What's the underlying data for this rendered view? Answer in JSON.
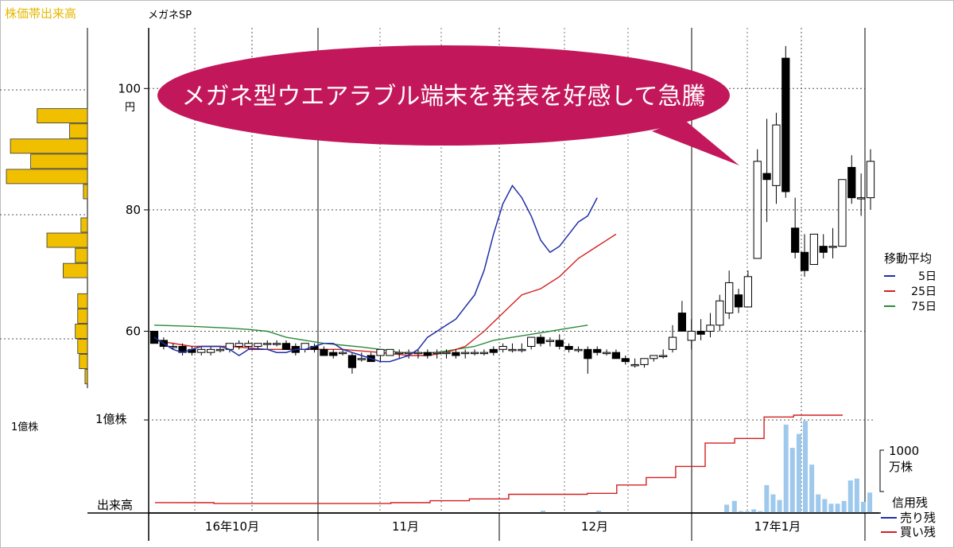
{
  "header": {
    "panel_title": "株価帯出来高",
    "stock_name": "メガネSP"
  },
  "colors": {
    "volume_profile": "#f0c000",
    "ma5": "#1f2fa8",
    "ma25": "#d42020",
    "ma75": "#2a8a3a",
    "volume": "#9ec9ec",
    "sell_balance": "#1f2fa8",
    "buy_balance": "#d42020",
    "callout": "#c2185b",
    "callout_text": "#ffffff"
  },
  "callout": {
    "text": "メガネ型ウエアラブル端末を発表を好感して急騰"
  },
  "left_panel": {
    "volume_label": "1億株"
  },
  "chart_data": {
    "type": "candlestick",
    "title": "メガネSP",
    "ylim": [
      48,
      110
    ],
    "y_ticks": [
      {
        "value": 60,
        "label": "60"
      },
      {
        "value": 80,
        "label": "80"
      },
      {
        "value": 100,
        "label": "100"
      }
    ],
    "y_unit": "円",
    "x_labels": [
      "16年10月",
      "11月",
      "12月",
      "17年1月"
    ],
    "grid": true,
    "candles": [
      {
        "o": 60,
        "h": 60,
        "l": 58,
        "c": 58
      },
      {
        "o": 58.5,
        "h": 59,
        "l": 57,
        "c": 57.5
      },
      {
        "o": 57.5,
        "h": 58,
        "l": 57,
        "c": 57.5
      },
      {
        "o": 57.5,
        "h": 58,
        "l": 56,
        "c": 56.5
      },
      {
        "o": 57,
        "h": 57.5,
        "l": 56,
        "c": 56.5
      },
      {
        "o": 56.5,
        "h": 57.5,
        "l": 56,
        "c": 57
      },
      {
        "o": 56.5,
        "h": 57.5,
        "l": 56,
        "c": 57
      },
      {
        "o": 57,
        "h": 57.5,
        "l": 56.5,
        "c": 57
      },
      {
        "o": 57,
        "h": 58,
        "l": 56.5,
        "c": 58
      },
      {
        "o": 57.5,
        "h": 58.5,
        "l": 57,
        "c": 58
      },
      {
        "o": 57.5,
        "h": 58.5,
        "l": 57,
        "c": 58
      },
      {
        "o": 57.5,
        "h": 58,
        "l": 57,
        "c": 58
      },
      {
        "o": 58,
        "h": 58.5,
        "l": 57,
        "c": 58
      },
      {
        "o": 58,
        "h": 58.5,
        "l": 57.5,
        "c": 58
      },
      {
        "o": 58,
        "h": 58.5,
        "l": 57,
        "c": 57
      },
      {
        "o": 57.5,
        "h": 58,
        "l": 56,
        "c": 56.5
      },
      {
        "o": 57,
        "h": 58,
        "l": 56.5,
        "c": 58
      },
      {
        "o": 57.5,
        "h": 58,
        "l": 56.5,
        "c": 57
      },
      {
        "o": 57,
        "h": 57.5,
        "l": 56,
        "c": 56
      },
      {
        "o": 56.5,
        "h": 57,
        "l": 55.5,
        "c": 56
      },
      {
        "o": 56.5,
        "h": 57,
        "l": 56,
        "c": 56.5
      },
      {
        "o": 56,
        "h": 56.5,
        "l": 53,
        "c": 54
      },
      {
        "o": 55.5,
        "h": 56.5,
        "l": 55,
        "c": 55.5
      },
      {
        "o": 56,
        "h": 56.5,
        "l": 55,
        "c": 55
      },
      {
        "o": 56,
        "h": 57,
        "l": 55,
        "c": 57
      },
      {
        "o": 56,
        "h": 57,
        "l": 56,
        "c": 57
      },
      {
        "o": 56.5,
        "h": 57,
        "l": 55.5,
        "c": 56.5
      },
      {
        "o": 56.5,
        "h": 57,
        "l": 55.5,
        "c": 56.5
      },
      {
        "o": 56.5,
        "h": 57,
        "l": 55.5,
        "c": 56.5
      },
      {
        "o": 56.5,
        "h": 57,
        "l": 55.5,
        "c": 56
      },
      {
        "o": 56.5,
        "h": 57,
        "l": 55.5,
        "c": 56.5
      },
      {
        "o": 56.5,
        "h": 57,
        "l": 55.5,
        "c": 56.5
      },
      {
        "o": 56.5,
        "h": 57,
        "l": 55.5,
        "c": 56
      },
      {
        "o": 56.5,
        "h": 57,
        "l": 55.5,
        "c": 56.5
      },
      {
        "o": 56.5,
        "h": 57,
        "l": 56,
        "c": 56.5
      },
      {
        "o": 56.5,
        "h": 57,
        "l": 56,
        "c": 56.5
      },
      {
        "o": 57,
        "h": 57.5,
        "l": 56,
        "c": 56.5
      },
      {
        "o": 57,
        "h": 58,
        "l": 56.5,
        "c": 57.5
      },
      {
        "o": 57,
        "h": 58,
        "l": 56.5,
        "c": 57
      },
      {
        "o": 57,
        "h": 58,
        "l": 56.5,
        "c": 57
      },
      {
        "o": 57.5,
        "h": 59,
        "l": 57,
        "c": 59
      },
      {
        "o": 59,
        "h": 59.5,
        "l": 57.5,
        "c": 58
      },
      {
        "o": 58.5,
        "h": 59,
        "l": 57.5,
        "c": 58.5
      },
      {
        "o": 58.5,
        "h": 59.5,
        "l": 57,
        "c": 57.5
      },
      {
        "o": 57.5,
        "h": 58,
        "l": 56.5,
        "c": 57
      },
      {
        "o": 57,
        "h": 57.5,
        "l": 56.5,
        "c": 57
      },
      {
        "o": 57,
        "h": 57.5,
        "l": 53,
        "c": 55.5
      },
      {
        "o": 57,
        "h": 57.5,
        "l": 56,
        "c": 56.5
      },
      {
        "o": 56.5,
        "h": 57,
        "l": 56,
        "c": 56.5
      },
      {
        "o": 56.5,
        "h": 57,
        "l": 56,
        "c": 55.5
      },
      {
        "o": 55.5,
        "h": 56,
        "l": 54.5,
        "c": 55
      },
      {
        "o": 54.5,
        "h": 55.5,
        "l": 54,
        "c": 54.5
      },
      {
        "o": 54.5,
        "h": 55.5,
        "l": 54,
        "c": 55.5
      },
      {
        "o": 55.5,
        "h": 56,
        "l": 55,
        "c": 56
      },
      {
        "o": 56,
        "h": 57,
        "l": 55.5,
        "c": 56
      },
      {
        "o": 57,
        "h": 61,
        "l": 56.5,
        "c": 59
      },
      {
        "o": 63,
        "h": 65,
        "l": 60,
        "c": 60
      },
      {
        "o": 58.5,
        "h": 62,
        "l": 57,
        "c": 60
      },
      {
        "o": 60,
        "h": 62,
        "l": 58.5,
        "c": 59.5
      },
      {
        "o": 60,
        "h": 63,
        "l": 59,
        "c": 61
      },
      {
        "o": 61,
        "h": 66,
        "l": 60,
        "c": 65
      },
      {
        "o": 63,
        "h": 70,
        "l": 62,
        "c": 68
      },
      {
        "o": 66,
        "h": 67,
        "l": 63,
        "c": 64
      },
      {
        "o": 64,
        "h": 70,
        "l": 64,
        "c": 69
      },
      {
        "o": 72,
        "h": 90,
        "l": 72,
        "c": 88
      },
      {
        "o": 86,
        "h": 95,
        "l": 78,
        "c": 85
      },
      {
        "o": 84,
        "h": 96,
        "l": 81,
        "c": 94
      },
      {
        "o": 105,
        "h": 107,
        "l": 82,
        "c": 83
      },
      {
        "o": 77,
        "h": 82,
        "l": 72,
        "c": 73
      },
      {
        "o": 73,
        "h": 76,
        "l": 69,
        "c": 70
      },
      {
        "o": 71,
        "h": 76,
        "l": 71,
        "c": 76
      },
      {
        "o": 74,
        "h": 76,
        "l": 72,
        "c": 73
      },
      {
        "o": 74,
        "h": 77,
        "l": 72,
        "c": 74
      },
      {
        "o": 74,
        "h": 85,
        "l": 74,
        "c": 85
      },
      {
        "o": 87,
        "h": 89,
        "l": 81,
        "c": 82
      },
      {
        "o": 82,
        "h": 86,
        "l": 79,
        "c": 82
      },
      {
        "o": 82,
        "h": 90,
        "l": 80,
        "c": 88
      }
    ],
    "ma5": [
      [
        0,
        59
      ],
      [
        10,
        58
      ],
      [
        20,
        57
      ],
      [
        30,
        56.5
      ],
      [
        40,
        57
      ],
      [
        50,
        57.5
      ],
      [
        60,
        57.5
      ],
      [
        70,
        57.5
      ],
      [
        80,
        57
      ],
      [
        90,
        56
      ],
      [
        95,
        56.5
      ],
      [
        100,
        57
      ],
      [
        110,
        57
      ],
      [
        120,
        57
      ],
      [
        130,
        56.5
      ],
      [
        140,
        56.5
      ],
      [
        150,
        57
      ],
      [
        160,
        57
      ],
      [
        170,
        57.5
      ],
      [
        180,
        58
      ],
      [
        190,
        58
      ],
      [
        200,
        57
      ],
      [
        210,
        56.5
      ],
      [
        220,
        56
      ],
      [
        230,
        55.5
      ],
      [
        240,
        55
      ],
      [
        250,
        55
      ],
      [
        260,
        55.5
      ],
      [
        270,
        56
      ],
      [
        280,
        57
      ],
      [
        290,
        59
      ],
      [
        300,
        60
      ],
      [
        310,
        61
      ],
      [
        320,
        62
      ],
      [
        330,
        64
      ],
      [
        340,
        66
      ],
      [
        350,
        70
      ],
      [
        360,
        76
      ],
      [
        370,
        81
      ],
      [
        380,
        84
      ],
      [
        390,
        82
      ],
      [
        400,
        79
      ],
      [
        410,
        75
      ],
      [
        420,
        73
      ],
      [
        430,
        74
      ],
      [
        440,
        76
      ],
      [
        450,
        78
      ],
      [
        460,
        79
      ],
      [
        470,
        82
      ]
    ],
    "ma25": [
      [
        0,
        58.5
      ],
      [
        40,
        57.5
      ],
      [
        80,
        57.5
      ],
      [
        120,
        57
      ],
      [
        160,
        57
      ],
      [
        200,
        57
      ],
      [
        240,
        56.5
      ],
      [
        270,
        56
      ],
      [
        290,
        56
      ],
      [
        310,
        56.5
      ],
      [
        330,
        57.5
      ],
      [
        350,
        60
      ],
      [
        370,
        63
      ],
      [
        390,
        66
      ],
      [
        410,
        67
      ],
      [
        430,
        69
      ],
      [
        450,
        72
      ],
      [
        470,
        74
      ],
      [
        490,
        76
      ]
    ],
    "ma75": [
      [
        0,
        61
      ],
      [
        40,
        60.8
      ],
      [
        80,
        60.5
      ],
      [
        100,
        60.3
      ],
      [
        120,
        60
      ],
      [
        140,
        59
      ],
      [
        160,
        58.5
      ],
      [
        180,
        58
      ],
      [
        200,
        57.7
      ],
      [
        220,
        57.4
      ],
      [
        240,
        57
      ],
      [
        260,
        56.5
      ],
      [
        280,
        56.4
      ],
      [
        300,
        56.5
      ],
      [
        320,
        57
      ],
      [
        340,
        57.5
      ],
      [
        360,
        58.5
      ],
      [
        380,
        59
      ],
      [
        400,
        59.5
      ],
      [
        420,
        60
      ],
      [
        440,
        60.5
      ],
      [
        460,
        61
      ]
    ],
    "moving_average_legend": {
      "title": "移動平均",
      "items": [
        {
          "name": "5日",
          "color": "#1f2fa8"
        },
        {
          "name": "25日",
          "color": "#d42020"
        },
        {
          "name": "75日",
          "color": "#2a8a3a"
        }
      ]
    },
    "volume_panel": {
      "label_top": "1億株",
      "label_bottom": "出来高",
      "unit_label_value": "1000",
      "unit_label_unit": "万株",
      "volume_max": 100,
      "volumes": [
        {
          "t": 0.888,
          "v": 9
        },
        {
          "t": 0.9,
          "v": 13
        },
        {
          "t": 0.91,
          "v": 2
        },
        {
          "t": 0.92,
          "v": 2
        },
        {
          "t": 0.93,
          "v": 4
        },
        {
          "t": 0.94,
          "v": 2
        },
        {
          "t": 0.95,
          "v": 30
        },
        {
          "t": 0.96,
          "v": 20
        },
        {
          "t": 0.97,
          "v": 14
        },
        {
          "t": 0.98,
          "v": 95
        },
        {
          "t": 0.99,
          "v": 70
        },
        {
          "t": 1.0,
          "v": 85
        },
        {
          "t": 1.01,
          "v": 99
        },
        {
          "t": 1.02,
          "v": 52
        },
        {
          "t": 1.03,
          "v": 20
        },
        {
          "t": 1.04,
          "v": 15
        },
        {
          "t": 1.05,
          "v": 10
        },
        {
          "t": 1.06,
          "v": 10
        },
        {
          "t": 1.07,
          "v": 13
        },
        {
          "t": 1.08,
          "v": 35
        },
        {
          "t": 1.09,
          "v": 37
        },
        {
          "t": 1.1,
          "v": 12
        },
        {
          "t": 1.11,
          "v": 22
        }
      ],
      "credit_legend": {
        "title": "信用残",
        "items": [
          {
            "name": "売り残",
            "color": "#1f2fa8"
          },
          {
            "name": "買い残",
            "color": "#d42020"
          }
        ]
      },
      "buy_balance": [
        [
          0,
          6
        ],
        [
          60,
          5
        ],
        [
          120,
          5
        ],
        [
          180,
          5
        ],
        [
          240,
          6
        ],
        [
          280,
          8
        ],
        [
          320,
          10
        ],
        [
          360,
          15
        ],
        [
          400,
          15
        ],
        [
          440,
          16
        ],
        [
          470,
          25
        ],
        [
          500,
          33
        ],
        [
          530,
          45
        ],
        [
          560,
          70
        ],
        [
          590,
          75
        ],
        [
          620,
          98
        ],
        [
          650,
          100
        ],
        [
          700,
          100
        ]
      ]
    },
    "volume_profile": [
      {
        "price": 95.5,
        "vol": 62
      },
      {
        "price": 93,
        "vol": 22
      },
      {
        "price": 90.5,
        "vol": 95
      },
      {
        "price": 88,
        "vol": 70
      },
      {
        "price": 85.5,
        "vol": 100
      },
      {
        "price": 83,
        "vol": 5
      },
      {
        "price": 77.5,
        "vol": 8
      },
      {
        "price": 75,
        "vol": 50
      },
      {
        "price": 72.5,
        "vol": 15
      },
      {
        "price": 70,
        "vol": 30
      },
      {
        "price": 65,
        "vol": 12
      },
      {
        "price": 62.5,
        "vol": 12
      },
      {
        "price": 60,
        "vol": 15
      },
      {
        "price": 57.5,
        "vol": 12
      },
      {
        "price": 55,
        "vol": 10
      },
      {
        "price": 52.5,
        "vol": 3
      }
    ]
  }
}
